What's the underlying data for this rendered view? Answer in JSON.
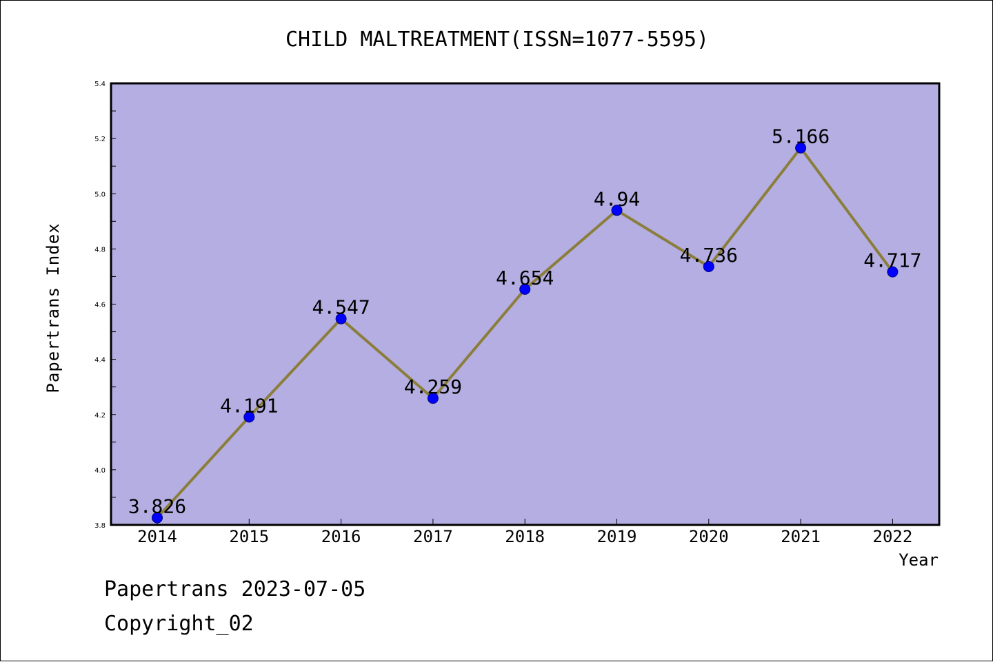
{
  "chart_data": {
    "type": "line",
    "title": "CHILD MALTREATMENT(ISSN=1077-5595)",
    "xlabel": "Year",
    "ylabel": "Papertrans Index",
    "categories": [
      "2014",
      "2015",
      "2016",
      "2017",
      "2018",
      "2019",
      "2020",
      "2021",
      "2022"
    ],
    "series": [
      {
        "values": [
          3.826,
          4.191,
          4.547,
          4.259,
          4.654,
          4.94,
          4.736,
          5.166,
          4.717
        ],
        "data_labels": [
          "3.826",
          "4.191",
          "4.547",
          "4.259",
          "4.654",
          "4.94",
          "4.736",
          "5.166",
          "4.717"
        ]
      }
    ],
    "ylim": [
      3.8,
      5.4
    ],
    "yticks": [
      "3.8",
      "4.0",
      "4.2",
      "4.4",
      "4.6",
      "4.8",
      "5.0",
      "5.2",
      "5.4"
    ],
    "grid": false,
    "legend": "none",
    "colors": {
      "plot_background": "#b4aee2",
      "line": "#8b7d3a",
      "marker": "#0000ff",
      "marker_edge": "#00007a",
      "axes": "#000000"
    }
  },
  "footer": {
    "line1": "Papertrans 2023-07-05",
    "line2": "Copyright_02"
  }
}
